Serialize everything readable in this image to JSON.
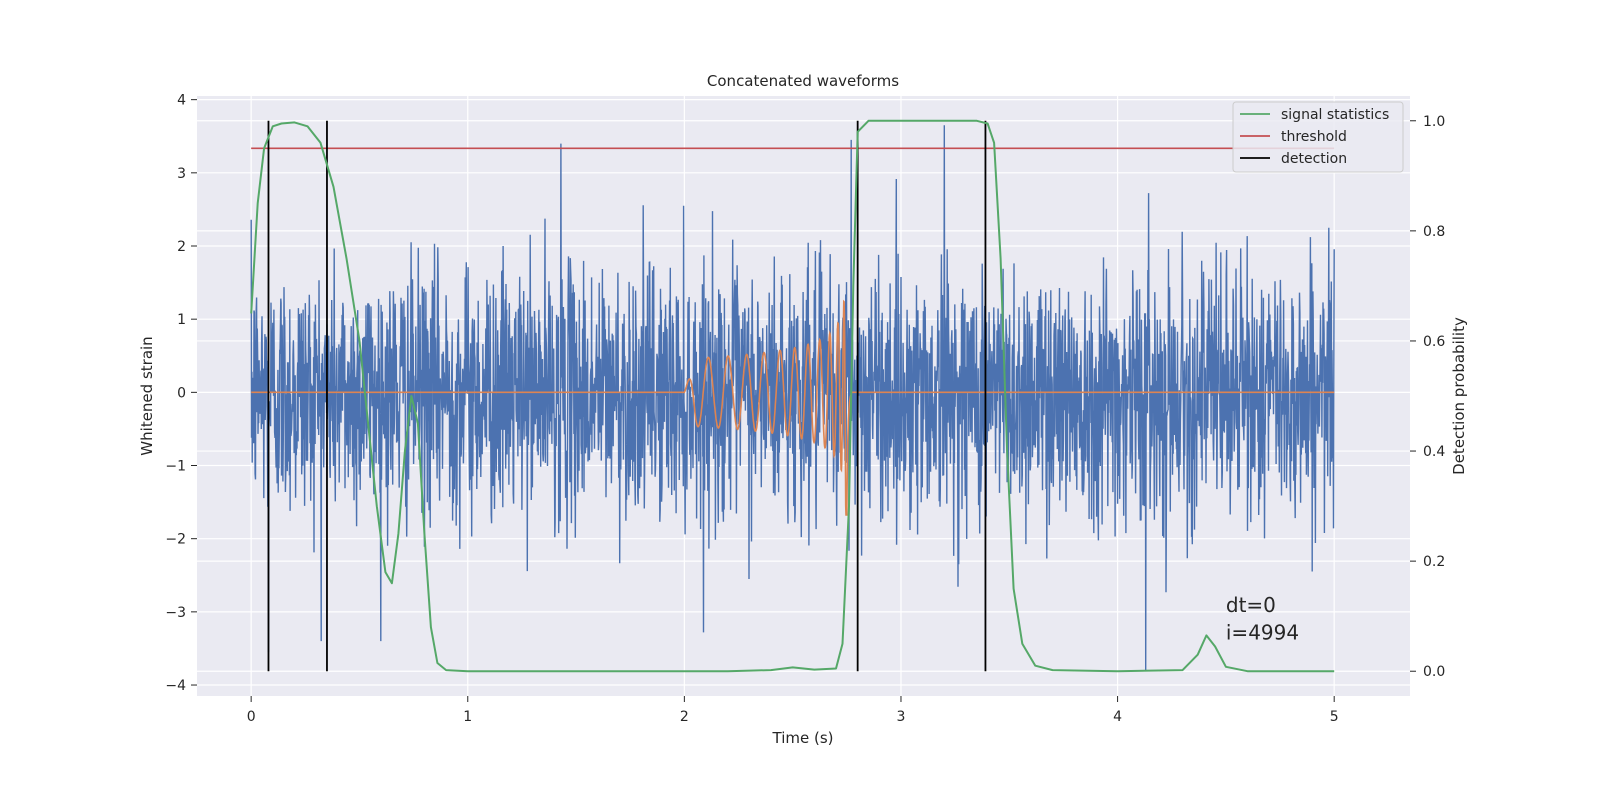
{
  "chart_data": {
    "type": "line",
    "title": "Concatenated waveforms",
    "xlabel": "Time (s)",
    "ylabel": "Whitened strain",
    "ylabel_right": "Detection probability",
    "xlim": [
      -0.25,
      5.35
    ],
    "ylim": [
      -4.15,
      4.05
    ],
    "ylim_right": [
      -0.045,
      1.045
    ],
    "x_ticks": [
      0,
      1,
      2,
      3,
      4,
      5
    ],
    "x_tick_labels": [
      "0",
      "1",
      "2",
      "3",
      "4",
      "5"
    ],
    "y_ticks": [
      -4,
      -3,
      -2,
      -1,
      0,
      1,
      2,
      3,
      4
    ],
    "y_tick_labels": [
      "−4",
      "−3",
      "−2",
      "−1",
      "0",
      "1",
      "2",
      "3",
      "4"
    ],
    "y_right_ticks": [
      0.0,
      0.2,
      0.4,
      0.6,
      0.8,
      1.0
    ],
    "y_right_tick_labels": [
      "0.0",
      "0.2",
      "0.4",
      "0.6",
      "0.8",
      "1.0"
    ],
    "grid": true,
    "legend_position": "top-right",
    "series": [
      {
        "name": "",
        "axis": "left",
        "kind": "noise",
        "x_range": [
          0,
          5
        ],
        "amplitude_rms": 0.85,
        "notable_spikes": [
          {
            "x": 0.08,
            "y": -3.55
          },
          {
            "x": 1.43,
            "y": 3.4
          },
          {
            "x": 2.77,
            "y": 3.45
          },
          {
            "x": 3.2,
            "y": 3.65
          },
          {
            "x": 4.13,
            "y": -3.8
          }
        ],
        "color": "#4c72b0"
      },
      {
        "name": "",
        "axis": "left",
        "kind": "chirp",
        "x_range": [
          0,
          5
        ],
        "chirp_start": 2.0,
        "chirp_peak": 2.75,
        "peak_amplitude": 1.7,
        "color": "#dd8452"
      },
      {
        "name": "signal statistics",
        "axis": "right",
        "x": [
          0.0,
          0.03,
          0.06,
          0.1,
          0.14,
          0.2,
          0.26,
          0.32,
          0.38,
          0.44,
          0.5,
          0.54,
          0.58,
          0.62,
          0.65,
          0.68,
          0.71,
          0.74,
          0.77,
          0.8,
          0.83,
          0.86,
          0.9,
          1.0,
          1.6,
          2.2,
          2.4,
          2.5,
          2.6,
          2.7,
          2.73,
          2.76,
          2.78,
          2.8,
          2.85,
          3.0,
          3.2,
          3.35,
          3.4,
          3.43,
          3.46,
          3.49,
          3.52,
          3.56,
          3.62,
          3.7,
          4.0,
          4.3,
          4.37,
          4.41,
          4.45,
          4.5,
          4.6,
          5.0
        ],
        "y": [
          0.65,
          0.85,
          0.95,
          0.99,
          0.995,
          0.997,
          0.99,
          0.96,
          0.88,
          0.75,
          0.6,
          0.45,
          0.3,
          0.18,
          0.16,
          0.25,
          0.4,
          0.5,
          0.45,
          0.25,
          0.08,
          0.015,
          0.002,
          0.0,
          0.0,
          0.0,
          0.002,
          0.007,
          0.003,
          0.005,
          0.05,
          0.3,
          0.7,
          0.98,
          1.0,
          1.0,
          1.0,
          1.0,
          0.995,
          0.96,
          0.75,
          0.4,
          0.15,
          0.05,
          0.01,
          0.002,
          0.0,
          0.002,
          0.03,
          0.065,
          0.045,
          0.008,
          0.0,
          0.0
        ],
        "color": "#55a868"
      },
      {
        "name": "threshold",
        "axis": "right",
        "x": [
          0,
          5
        ],
        "y": [
          0.95,
          0.95
        ],
        "color": "#c44e52"
      },
      {
        "name": "detection",
        "axis": "right",
        "kind": "vlines",
        "x": [
          0.08,
          0.35,
          2.8,
          3.39
        ],
        "y_range": [
          0.0,
          1.0
        ],
        "color": "#000000"
      }
    ],
    "annotations": [
      {
        "text": "dt=0",
        "x": 4.5,
        "y": -3.0
      },
      {
        "text": "i=4994",
        "x": 4.5,
        "y": -3.38
      }
    ]
  }
}
